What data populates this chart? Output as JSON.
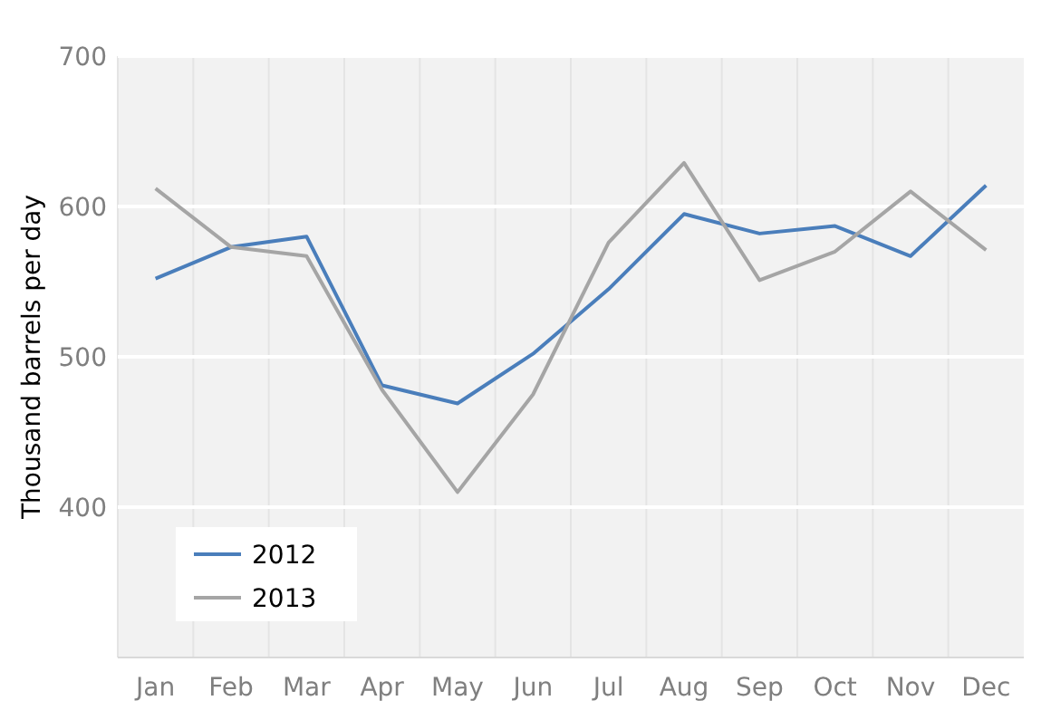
{
  "chart_data": {
    "type": "line",
    "ylabel": "Thousand barrels per day",
    "categories": [
      "Jan",
      "Feb",
      "Mar",
      "Apr",
      "May",
      "Jun",
      "Jul",
      "Aug",
      "Sep",
      "Oct",
      "Nov",
      "Dec"
    ],
    "series": [
      {
        "name": "2012",
        "color": "#4a7ebb",
        "values": [
          552,
          573,
          580,
          481,
          469,
          502,
          545,
          595,
          582,
          587,
          567,
          614
        ]
      },
      {
        "name": "2013",
        "color": "#a5a5a5",
        "values": [
          612,
          573,
          567,
          478,
          410,
          475,
          576,
          629,
          551,
          570,
          610,
          571
        ]
      }
    ],
    "ylim": [
      300,
      700
    ],
    "yticks": [
      400,
      500,
      600,
      700
    ],
    "grid": true,
    "legend": "bottom left",
    "marker": "none",
    "line_style": "solid"
  }
}
